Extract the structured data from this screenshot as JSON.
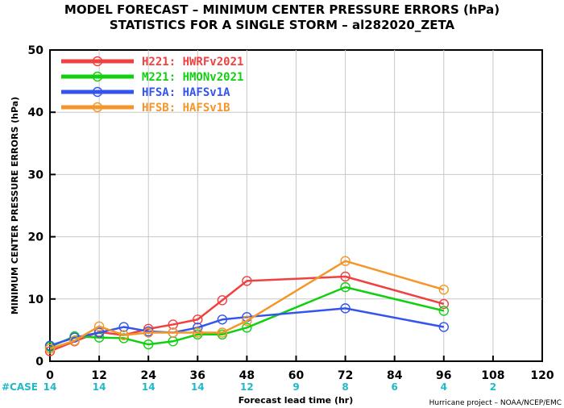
{
  "chart_data": {
    "type": "line",
    "title": "MODEL FORECAST – MINIMUM CENTER PRESSURE ERRORS (hPa)",
    "subtitle": "STATISTICS FOR A SINGLE STORM – al282020_ZETA",
    "xlabel": "Forecast lead time (hr)",
    "ylabel": "MINIMUM CENTER PRESSURE ERRORS (hPa)",
    "xlim": [
      0,
      120
    ],
    "ylim": [
      0,
      50
    ],
    "xticks": [
      0,
      12,
      24,
      36,
      48,
      60,
      72,
      84,
      96,
      108,
      120
    ],
    "yticks": [
      0,
      10,
      20,
      30,
      40,
      50
    ],
    "legend_position": "top-left",
    "case_label": "#CASE",
    "cases": [
      {
        "x": 0,
        "n": "14"
      },
      {
        "x": 12,
        "n": "14"
      },
      {
        "x": 24,
        "n": "14"
      },
      {
        "x": 36,
        "n": "14"
      },
      {
        "x": 48,
        "n": "12"
      },
      {
        "x": 60,
        "n": "9"
      },
      {
        "x": 72,
        "n": "8"
      },
      {
        "x": 84,
        "n": "6"
      },
      {
        "x": 96,
        "n": "4"
      },
      {
        "x": 108,
        "n": "2"
      }
    ],
    "series": [
      {
        "name": "H221: HWRFv2021",
        "color": "#f04040",
        "x": [
          0,
          6,
          12,
          18,
          24,
          30,
          36,
          42,
          48,
          72,
          96
        ],
        "y": [
          1.6,
          3.2,
          4.7,
          4.2,
          5.2,
          5.9,
          6.7,
          9.8,
          12.9,
          13.6,
          9.2
        ]
      },
      {
        "name": "M221: HMONv2021",
        "color": "#10d010",
        "x": [
          0,
          6,
          12,
          18,
          24,
          30,
          36,
          42,
          48,
          72,
          96
        ],
        "y": [
          2.3,
          4.0,
          3.8,
          3.7,
          2.7,
          3.2,
          4.3,
          4.3,
          5.4,
          11.9,
          8.1
        ]
      },
      {
        "name": "HFSA: HAFSv1A",
        "color": "#3355ee",
        "x": [
          0,
          6,
          12,
          18,
          24,
          30,
          36,
          42,
          48,
          72,
          96
        ],
        "y": [
          2.5,
          3.8,
          4.6,
          5.5,
          4.8,
          4.6,
          5.4,
          6.7,
          7.1,
          8.5,
          5.5
        ]
      },
      {
        "name": "HFSB: HAFSv1B",
        "color": "#f5962a",
        "x": [
          0,
          6,
          12,
          18,
          24,
          30,
          36,
          42,
          48,
          72,
          96
        ],
        "y": [
          2.0,
          3.3,
          5.6,
          4.2,
          4.6,
          4.6,
          4.6,
          4.6,
          6.5,
          16.1,
          11.5
        ]
      }
    ],
    "credit": "Hurricane project – NOAA/NCEP/EMC"
  }
}
